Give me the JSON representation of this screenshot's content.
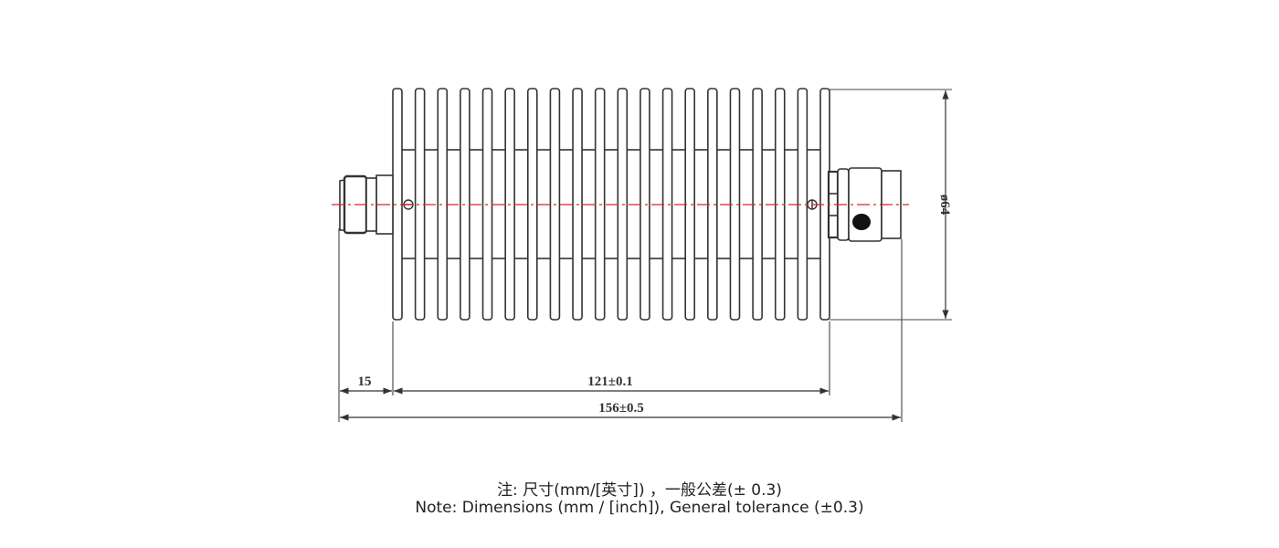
{
  "drawing": {
    "fin_count": 20,
    "dimensions": {
      "connector_length": "15",
      "body_length": "121±0.1",
      "total_length": "156±0.5",
      "diameter": "ø64"
    },
    "colors": {
      "line": "#333333",
      "centerline": "#e02020"
    }
  },
  "notes": {
    "line1": "注: 尺寸(mm/[英寸]) ，一般公差(± 0.3)",
    "line2": "Note: Dimensions (mm / [inch]), General tolerance (±0.3)"
  }
}
